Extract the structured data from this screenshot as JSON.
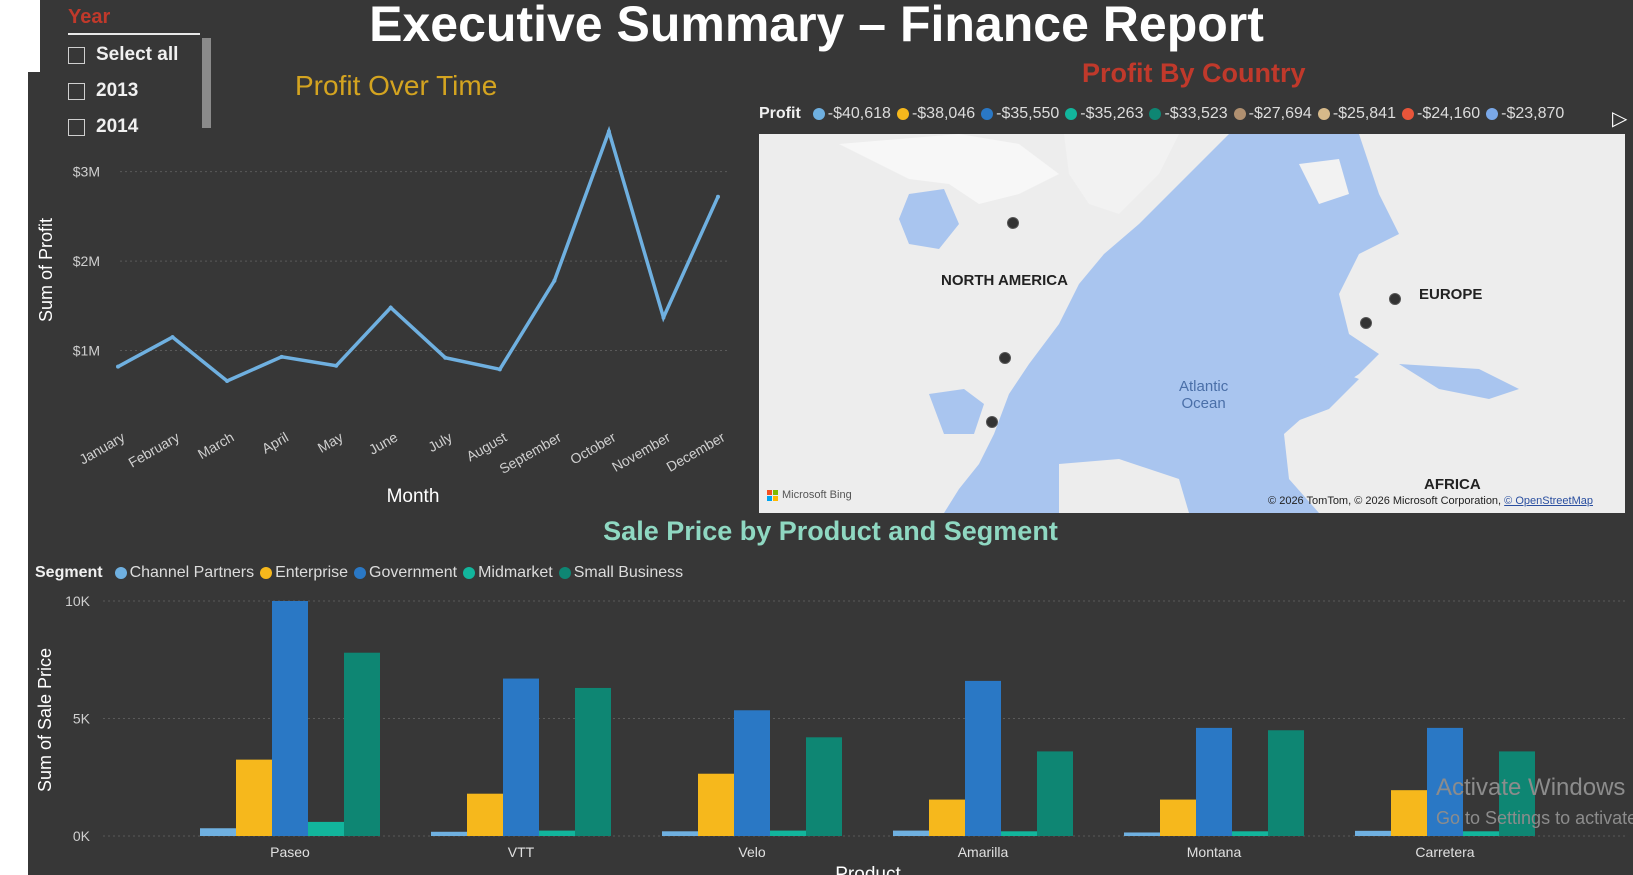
{
  "report": {
    "title": "Executive Summary – Finance Report"
  },
  "slicer": {
    "title": "Year",
    "items": [
      {
        "label": "Select all",
        "checked": false
      },
      {
        "label": "2013",
        "checked": false
      },
      {
        "label": "2014",
        "checked": false
      }
    ]
  },
  "colors": {
    "canvas": "#373737",
    "line": "#6fb0e0",
    "grid": "#5a5a5a",
    "channel_partners": "#6fb0e0",
    "enterprise": "#f6b81c",
    "government": "#2a78c5",
    "midmarket": "#12b59c",
    "small_business": "#0e8673"
  },
  "profit_over_time": {
    "heading": "Profit Over Time"
  },
  "profit_by_country": {
    "heading": "Profit By Country",
    "legend_title": "Profit",
    "legend_items": [
      {
        "label": "-$40,618",
        "color": "#6fb0e0"
      },
      {
        "label": "-$38,046",
        "color": "#f6b81c"
      },
      {
        "label": "-$35,550",
        "color": "#2a78c5"
      },
      {
        "label": "-$35,263",
        "color": "#12b59c"
      },
      {
        "label": "-$33,523",
        "color": "#0e8673"
      },
      {
        "label": "-$27,694",
        "color": "#b09070"
      },
      {
        "label": "-$25,841",
        "color": "#d6b98a"
      },
      {
        "label": "-$24,160",
        "color": "#e8553a"
      },
      {
        "label": "-$23,870",
        "color": "#7aa8e8"
      }
    ],
    "map_labels": {
      "north_america": "NORTH AMERICA",
      "europe": "EUROPE",
      "africa": "AFRICA",
      "ocean_line1": "Atlantic",
      "ocean_line2": "Ocean"
    },
    "attribution": "© 2026 TomTom, © 2026 Microsoft Corporation,",
    "attribution_link": "© OpenStreetMap",
    "bing_label": "Microsoft Bing",
    "scroll_icon": "chevron-right-icon"
  },
  "sale_price": {
    "heading": "Sale Price by Product and Segment",
    "legend_title": "Segment"
  },
  "watermark": {
    "line1": "Activate Windows",
    "line2": "Go to Settings to activate"
  },
  "chart_data": [
    {
      "type": "line",
      "title": "",
      "xlabel": "Month",
      "ylabel": "Sum of Profit",
      "x": [
        "January",
        "February",
        "March",
        "April",
        "May",
        "June",
        "July",
        "August",
        "September",
        "October",
        "November",
        "December"
      ],
      "series": [
        {
          "values": [
            820000,
            1150000,
            660000,
            930000,
            830000,
            1480000,
            920000,
            790000,
            1780000,
            3450000,
            1370000,
            2720000
          ]
        }
      ],
      "yticks": [
        "$1M",
        "$2M",
        "$3M"
      ],
      "ylim": [
        0,
        3600000
      ],
      "grid": true
    },
    {
      "type": "bar",
      "title": "",
      "xlabel": "Product",
      "ylabel": "Sum of Sale Price",
      "categories": [
        "Paseo",
        "VTT",
        "Velo",
        "Amarilla",
        "Montana",
        "Carretera"
      ],
      "series": [
        {
          "name": "Channel Partners",
          "values": [
            330,
            180,
            200,
            230,
            150,
            220
          ]
        },
        {
          "name": "Enterprise",
          "values": [
            3250,
            1800,
            2650,
            1550,
            1550,
            1950
          ]
        },
        {
          "name": "Government",
          "values": [
            10000,
            6700,
            5350,
            6600,
            4600,
            4600
          ]
        },
        {
          "name": "Midmarket",
          "values": [
            600,
            230,
            230,
            200,
            200,
            200
          ]
        },
        {
          "name": "Small Business",
          "values": [
            7800,
            6300,
            4200,
            3600,
            4500,
            3600
          ]
        }
      ],
      "yticks": [
        "0K",
        "5K",
        "10K"
      ],
      "ylim": [
        0,
        10000
      ],
      "grid": true,
      "legend": "top-left"
    }
  ]
}
